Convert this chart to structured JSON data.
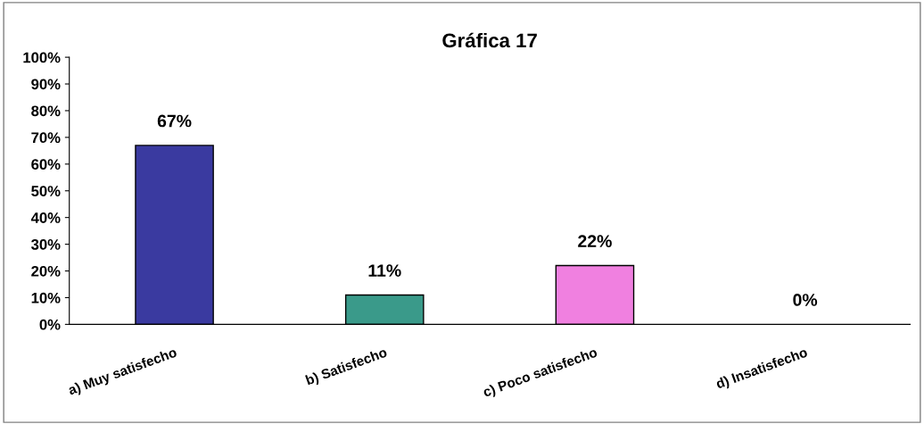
{
  "chart_data": {
    "type": "bar",
    "title": "Gráfica 17",
    "categories": [
      "a) Muy satisfecho",
      "b) Satisfecho",
      "c) Poco satisfecho",
      "d) Insatisfecho"
    ],
    "values": [
      67,
      11,
      22,
      0
    ],
    "value_labels": [
      "67%",
      "11%",
      "22%",
      "0%"
    ],
    "colors": [
      "#3a3aa0",
      "#3a9a8a",
      "#f080e0",
      "#ffffff"
    ],
    "ylim": [
      0,
      100
    ],
    "yticks": [
      {
        "value": 0,
        "label": "0%"
      },
      {
        "value": 10,
        "label": "10%"
      },
      {
        "value": 20,
        "label": "20%"
      },
      {
        "value": 30,
        "label": "30%"
      },
      {
        "value": 40,
        "label": "40%"
      },
      {
        "value": 50,
        "label": "50%"
      },
      {
        "value": 60,
        "label": "60%"
      },
      {
        "value": 70,
        "label": "70%"
      },
      {
        "value": 80,
        "label": "80%"
      },
      {
        "value": 90,
        "label": "90%"
      },
      {
        "value": 100,
        "label": "100%"
      }
    ],
    "grid": false,
    "legend": false
  }
}
